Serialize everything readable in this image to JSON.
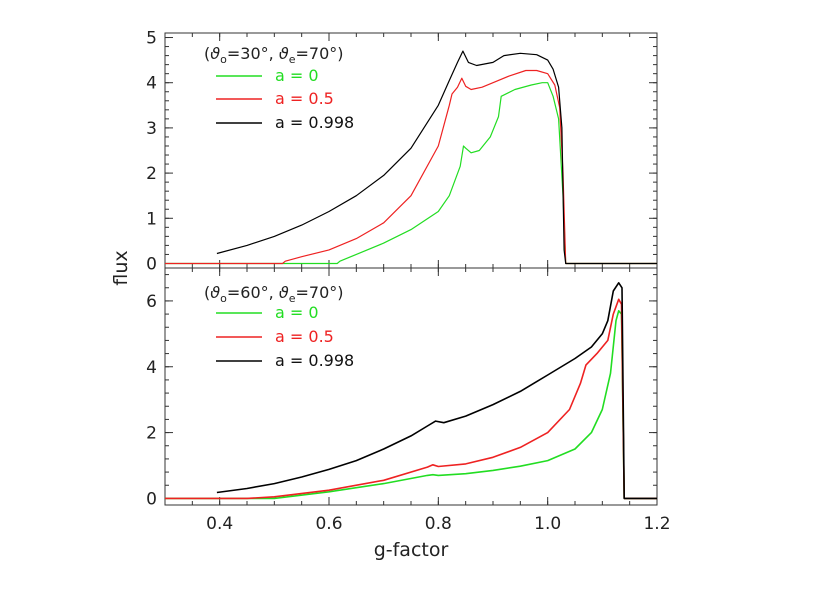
{
  "chart_data": [
    {
      "type": "line",
      "panel": "top",
      "legend_title": "(ϑo=30°, ϑe=70°)",
      "legend_title_parts": {
        "open": "(",
        "theta": "ϑ",
        "sub_o": "o",
        "val_o": "=30°, ",
        "sub_e": "e",
        "val_e": "=70°)"
      },
      "legend_placement": "top-left",
      "xlabel": "g-factor",
      "ylabel": "flux",
      "xlim": [
        0.3,
        1.2
      ],
      "ylim": [
        -0.1,
        5.1
      ],
      "yticks": [
        0,
        1,
        2,
        3,
        4,
        5
      ],
      "ytick_labels": [
        "0",
        "1",
        "2",
        "3",
        "4",
        "5"
      ],
      "series": [
        {
          "name": "a = 0",
          "color": "#22dd22",
          "points": [
            [
              0.3,
              0
            ],
            [
              0.615,
              0
            ],
            [
              0.62,
              0.05
            ],
            [
              0.65,
              0.2
            ],
            [
              0.7,
              0.45
            ],
            [
              0.75,
              0.75
            ],
            [
              0.8,
              1.15
            ],
            [
              0.82,
              1.5
            ],
            [
              0.84,
              2.15
            ],
            [
              0.846,
              2.6
            ],
            [
              0.85,
              2.55
            ],
            [
              0.86,
              2.45
            ],
            [
              0.875,
              2.5
            ],
            [
              0.895,
              2.8
            ],
            [
              0.91,
              3.25
            ],
            [
              0.915,
              3.7
            ],
            [
              0.94,
              3.85
            ],
            [
              0.97,
              3.95
            ],
            [
              0.99,
              4.0
            ],
            [
              1.0,
              4.0
            ],
            [
              1.01,
              3.7
            ],
            [
              1.02,
              3.2
            ],
            [
              1.028,
              1.5
            ],
            [
              1.033,
              0
            ],
            [
              1.2,
              0
            ]
          ]
        },
        {
          "name": "a = 0.5",
          "color": "#ee2222",
          "points": [
            [
              0.3,
              0
            ],
            [
              0.515,
              0
            ],
            [
              0.52,
              0.05
            ],
            [
              0.55,
              0.15
            ],
            [
              0.6,
              0.3
            ],
            [
              0.65,
              0.55
            ],
            [
              0.7,
              0.9
            ],
            [
              0.75,
              1.5
            ],
            [
              0.8,
              2.6
            ],
            [
              0.82,
              3.5
            ],
            [
              0.825,
              3.75
            ],
            [
              0.835,
              3.9
            ],
            [
              0.843,
              4.1
            ],
            [
              0.85,
              3.92
            ],
            [
              0.86,
              3.85
            ],
            [
              0.88,
              3.9
            ],
            [
              0.9,
              4.0
            ],
            [
              0.93,
              4.15
            ],
            [
              0.96,
              4.27
            ],
            [
              0.98,
              4.27
            ],
            [
              1.0,
              4.2
            ],
            [
              1.013,
              3.95
            ],
            [
              1.022,
              3.45
            ],
            [
              1.028,
              2.0
            ],
            [
              1.033,
              0
            ],
            [
              1.2,
              0
            ]
          ]
        },
        {
          "name": "a = 0.998",
          "color": "#000000",
          "points": [
            [
              0.395,
              0.22
            ],
            [
              0.45,
              0.4
            ],
            [
              0.5,
              0.6
            ],
            [
              0.55,
              0.85
            ],
            [
              0.6,
              1.15
            ],
            [
              0.65,
              1.5
            ],
            [
              0.7,
              1.95
            ],
            [
              0.75,
              2.55
            ],
            [
              0.8,
              3.5
            ],
            [
              0.82,
              4.05
            ],
            [
              0.835,
              4.45
            ],
            [
              0.845,
              4.7
            ],
            [
              0.855,
              4.45
            ],
            [
              0.87,
              4.38
            ],
            [
              0.9,
              4.45
            ],
            [
              0.92,
              4.6
            ],
            [
              0.95,
              4.65
            ],
            [
              0.98,
              4.62
            ],
            [
              1.0,
              4.5
            ],
            [
              1.01,
              4.3
            ],
            [
              1.02,
              3.9
            ],
            [
              1.026,
              3.0
            ],
            [
              1.03,
              0.3
            ],
            [
              1.033,
              0
            ],
            [
              1.2,
              0
            ]
          ]
        }
      ]
    },
    {
      "type": "line",
      "panel": "bottom",
      "legend_title": "(ϑo=60°, ϑe=70°)",
      "legend_title_parts": {
        "open": "(",
        "theta": "ϑ",
        "sub_o": "o",
        "val_o": "=60°, ",
        "sub_e": "e",
        "val_e": "=70°)"
      },
      "legend_placement": "top-left",
      "xlabel": "g-factor",
      "ylabel": "flux",
      "xlim": [
        0.3,
        1.2
      ],
      "ylim": [
        -0.2,
        7.0
      ],
      "xticks": [
        0.4,
        0.6,
        0.8,
        1.0,
        1.2
      ],
      "xtick_labels": [
        "0.4",
        "0.6",
        "0.8",
        "1.0",
        "1.2"
      ],
      "yticks": [
        0,
        2,
        4,
        6
      ],
      "ytick_labels": [
        "0",
        "2",
        "4",
        "6"
      ],
      "series": [
        {
          "name": "a = 0",
          "color": "#22dd22",
          "points": [
            [
              0.3,
              0
            ],
            [
              0.5,
              0
            ],
            [
              0.6,
              0.2
            ],
            [
              0.7,
              0.45
            ],
            [
              0.78,
              0.7
            ],
            [
              0.79,
              0.72
            ],
            [
              0.8,
              0.7
            ],
            [
              0.85,
              0.75
            ],
            [
              0.9,
              0.85
            ],
            [
              0.95,
              0.98
            ],
            [
              1.0,
              1.15
            ],
            [
              1.05,
              1.5
            ],
            [
              1.08,
              2.0
            ],
            [
              1.1,
              2.7
            ],
            [
              1.115,
              3.8
            ],
            [
              1.125,
              5.4
            ],
            [
              1.13,
              5.7
            ],
            [
              1.135,
              5.6
            ],
            [
              1.14,
              0
            ],
            [
              1.2,
              0
            ]
          ]
        },
        {
          "name": "a = 0.5",
          "color": "#ee2222",
          "points": [
            [
              0.3,
              0
            ],
            [
              0.45,
              0
            ],
            [
              0.5,
              0.05
            ],
            [
              0.6,
              0.25
            ],
            [
              0.7,
              0.55
            ],
            [
              0.78,
              0.95
            ],
            [
              0.79,
              1.02
            ],
            [
              0.8,
              0.97
            ],
            [
              0.85,
              1.05
            ],
            [
              0.9,
              1.25
            ],
            [
              0.95,
              1.55
            ],
            [
              1.0,
              2.0
            ],
            [
              1.04,
              2.7
            ],
            [
              1.06,
              3.5
            ],
            [
              1.07,
              4.05
            ],
            [
              1.09,
              4.4
            ],
            [
              1.11,
              4.8
            ],
            [
              1.12,
              5.6
            ],
            [
              1.13,
              6.05
            ],
            [
              1.135,
              5.9
            ],
            [
              1.14,
              0
            ],
            [
              1.2,
              0
            ]
          ]
        },
        {
          "name": "a = 0.998",
          "color": "#000000",
          "points": [
            [
              0.395,
              0.18
            ],
            [
              0.45,
              0.3
            ],
            [
              0.5,
              0.45
            ],
            [
              0.55,
              0.65
            ],
            [
              0.6,
              0.88
            ],
            [
              0.65,
              1.15
            ],
            [
              0.7,
              1.5
            ],
            [
              0.75,
              1.9
            ],
            [
              0.78,
              2.2
            ],
            [
              0.795,
              2.35
            ],
            [
              0.81,
              2.3
            ],
            [
              0.85,
              2.5
            ],
            [
              0.9,
              2.85
            ],
            [
              0.95,
              3.25
            ],
            [
              1.0,
              3.75
            ],
            [
              1.05,
              4.25
            ],
            [
              1.08,
              4.6
            ],
            [
              1.1,
              5.0
            ],
            [
              1.11,
              5.4
            ],
            [
              1.12,
              6.3
            ],
            [
              1.13,
              6.55
            ],
            [
              1.136,
              6.4
            ],
            [
              1.14,
              0
            ],
            [
              1.2,
              0
            ]
          ]
        }
      ]
    }
  ]
}
